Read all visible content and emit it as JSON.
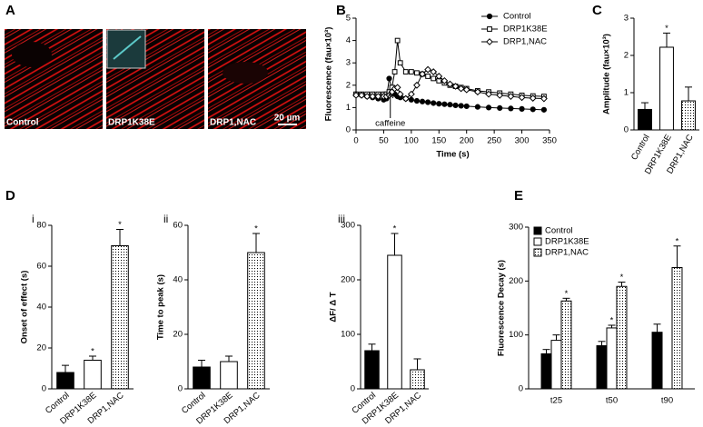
{
  "panel_labels": [
    "A",
    "B",
    "C",
    "D",
    "E"
  ],
  "image_panel": {
    "images": [
      {
        "label": "Control"
      },
      {
        "label": "DRP1K38E"
      },
      {
        "label": "DRP1,NAC"
      }
    ],
    "scale_bar": "20 µm"
  },
  "chart_data": [
    {
      "type": "line",
      "ylabel": "Fluorescence (fau×10³)",
      "xlabel": "Time (s)",
      "x": [
        0,
        10,
        20,
        30,
        40,
        50,
        55,
        60,
        65,
        70,
        75,
        80,
        90,
        100,
        110,
        120,
        130,
        140,
        150,
        160,
        170,
        180,
        190,
        200,
        220,
        240,
        260,
        280,
        300,
        320,
        340
      ],
      "series": [
        {
          "name": "Control",
          "color": "#000000",
          "marker": "circle",
          "values": [
            1.6,
            1.55,
            1.5,
            1.45,
            1.4,
            1.35,
            1.4,
            2.3,
            1.8,
            1.6,
            1.5,
            1.45,
            1.4,
            1.35,
            1.3,
            1.27,
            1.24,
            1.2,
            1.17,
            1.15,
            1.13,
            1.1,
            1.08,
            1.06,
            1.03,
            1.0,
            0.98,
            0.96,
            0.94,
            0.92,
            0.9
          ]
        },
        {
          "name": "DRP1K38E",
          "color": "#000000",
          "marker": "square",
          "values": [
            1.6,
            1.6,
            1.6,
            1.6,
            1.6,
            1.6,
            1.6,
            1.7,
            1.9,
            2.6,
            4.0,
            3.0,
            2.6,
            2.6,
            2.55,
            2.5,
            2.4,
            2.3,
            2.2,
            2.1,
            2.0,
            1.95,
            1.9,
            1.85,
            1.75,
            1.7,
            1.65,
            1.6,
            1.55,
            1.52,
            1.5
          ]
        },
        {
          "name": "DRP1,NAC",
          "color": "#000000",
          "marker": "diamond",
          "values": [
            1.55,
            1.55,
            1.5,
            1.5,
            1.5,
            1.5,
            1.5,
            1.55,
            1.7,
            1.85,
            1.9,
            1.6,
            1.4,
            1.6,
            2.0,
            2.5,
            2.7,
            2.6,
            2.4,
            2.2,
            2.05,
            1.95,
            1.85,
            1.8,
            1.7,
            1.6,
            1.55,
            1.5,
            1.45,
            1.42,
            1.4
          ]
        }
      ],
      "xlim": [
        0,
        350
      ],
      "xticks": [
        0,
        50,
        100,
        150,
        200,
        250,
        300,
        350
      ],
      "ylim": [
        0,
        5
      ],
      "yticks": [
        0,
        1,
        2,
        3,
        4,
        5
      ],
      "legend": "upper right",
      "annotations": [
        {
          "text": "caffeine",
          "x": 62
        }
      ]
    },
    {
      "type": "bar",
      "ylabel": "Amplitude (fau×10³)",
      "categories": [
        "Control",
        "DRP1K38E",
        "DRP1,NAC"
      ],
      "values": [
        0.55,
        2.22,
        0.78
      ],
      "errors": [
        0.18,
        0.38,
        0.37
      ],
      "colors": [
        "#000000",
        "#ffffff",
        "#ffffff"
      ],
      "dotted": [
        false,
        false,
        true
      ],
      "significance": [
        null,
        "*",
        null
      ],
      "ylim": [
        0,
        3
      ],
      "yticks": [
        0,
        1,
        2,
        3
      ]
    },
    {
      "type": "bar",
      "subpanel": "i",
      "ylabel": "Onset of effect (s)",
      "categories": [
        "Control",
        "DRP1K38E",
        "DRP1,NAC"
      ],
      "values": [
        8,
        14,
        70
      ],
      "errors": [
        3.5,
        2,
        8
      ],
      "colors": [
        "#000000",
        "#ffffff",
        "#ffffff"
      ],
      "dotted": [
        false,
        false,
        true
      ],
      "significance": [
        null,
        "*",
        "*"
      ],
      "ylim": [
        0,
        80
      ],
      "yticks": [
        0,
        20,
        40,
        60,
        80
      ]
    },
    {
      "type": "bar",
      "subpanel": "ii",
      "ylabel": "Time to peak (s)",
      "categories": [
        "Control",
        "DRP1K38E",
        "DRP1,NAC"
      ],
      "values": [
        8,
        10,
        50
      ],
      "errors": [
        2.5,
        2,
        7
      ],
      "colors": [
        "#000000",
        "#ffffff",
        "#ffffff"
      ],
      "dotted": [
        false,
        false,
        true
      ],
      "significance": [
        null,
        null,
        "*"
      ],
      "ylim": [
        0,
        60
      ],
      "yticks": [
        0,
        20,
        40,
        60
      ]
    },
    {
      "type": "bar",
      "subpanel": "iii",
      "ylabel": "ΔF/ Δ T",
      "categories": [
        "Control",
        "DRP1K38E",
        "DRP1,NAC"
      ],
      "values": [
        70,
        245,
        35
      ],
      "errors": [
        12,
        40,
        20
      ],
      "colors": [
        "#000000",
        "#ffffff",
        "#ffffff"
      ],
      "dotted": [
        false,
        false,
        true
      ],
      "significance": [
        null,
        "*",
        null
      ],
      "ylim": [
        0,
        300
      ],
      "yticks": [
        0,
        100,
        200,
        300
      ]
    },
    {
      "type": "grouped_bar",
      "ylabel": "Fluorescence Decay (s)",
      "categories": [
        "t25",
        "t50",
        "t90"
      ],
      "series": [
        {
          "name": "Control",
          "color": "#000000",
          "dotted": false,
          "values": [
            65,
            80,
            105
          ],
          "errors": [
            8,
            8,
            15
          ],
          "significance": [
            null,
            null,
            null
          ]
        },
        {
          "name": "DRP1K38E",
          "color": "#ffffff",
          "dotted": false,
          "values": [
            90,
            113,
            null
          ],
          "errors": [
            10,
            5,
            null
          ],
          "significance": [
            null,
            "*",
            null
          ]
        },
        {
          "name": "DRP1,NAC",
          "color": "#ffffff",
          "dotted": true,
          "values": [
            163,
            190,
            225
          ],
          "errors": [
            5,
            8,
            40
          ],
          "significance": [
            "*",
            "*",
            "*"
          ]
        }
      ],
      "ylim": [
        0,
        300
      ],
      "yticks": [
        0,
        100,
        200,
        300
      ],
      "legend": "upper left"
    }
  ]
}
